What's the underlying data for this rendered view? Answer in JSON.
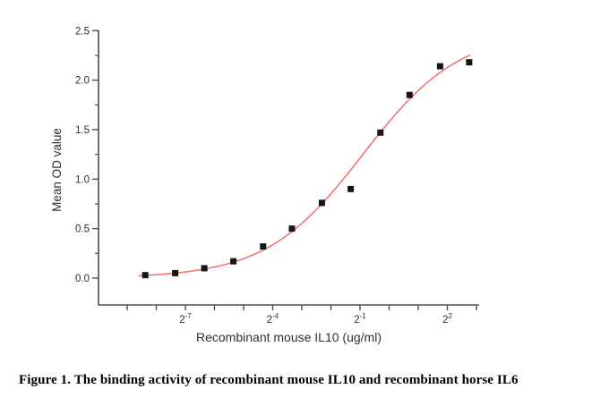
{
  "figure": {
    "caption": "Figure 1. The binding activity of recombinant mouse IL10 and recombinant horse IL6"
  },
  "chart_data": {
    "type": "scatter",
    "title": "",
    "xlabel": "Recombinant mouse IL10 (ug/ml)",
    "ylabel": "Mean OD value",
    "x_scale": "log2",
    "grid": "off",
    "legend_position": "none",
    "axis_color": "#4d4d4d",
    "text_color": "#2f2f2f",
    "x_axis": {
      "tick_exponents": [
        -9,
        -8,
        -7,
        -6,
        -5,
        -4,
        -3,
        -2,
        -1,
        0,
        1,
        2,
        3
      ],
      "labeled_exponents": [
        -7,
        -4,
        -1,
        2
      ],
      "labeled_ticks": [
        {
          "base": "2",
          "exp": "-7"
        },
        {
          "base": "2",
          "exp": "-4"
        },
        {
          "base": "2",
          "exp": "-1"
        },
        {
          "base": "2",
          "exp": "2"
        }
      ],
      "range_log2": [
        -9.05,
        3.1
      ]
    },
    "y_axis": {
      "major_tick_labels": [
        "0.0",
        "0.5",
        "1.0",
        "1.5",
        "2.0",
        "2.5"
      ],
      "major_values": [
        0.0,
        0.5,
        1.0,
        1.5,
        2.0,
        2.5
      ],
      "minor_values": [
        0.25,
        0.75,
        1.25,
        1.75,
        2.25
      ],
      "range": [
        -0.27,
        2.5
      ]
    },
    "series": [
      {
        "name": "Mean OD value",
        "marker": "square",
        "marker_color": "#161616",
        "points": [
          {
            "log2x": -8.38,
            "od": 0.03
          },
          {
            "log2x": -7.35,
            "od": 0.05
          },
          {
            "log2x": -6.35,
            "od": 0.1
          },
          {
            "log2x": -5.35,
            "od": 0.17
          },
          {
            "log2x": -4.33,
            "od": 0.32
          },
          {
            "log2x": -3.34,
            "od": 0.5
          },
          {
            "log2x": -2.31,
            "od": 0.76
          },
          {
            "log2x": -1.32,
            "od": 0.9
          },
          {
            "log2x": -0.3,
            "od": 1.47
          },
          {
            "log2x": 0.7,
            "od": 1.85
          },
          {
            "log2x": 1.75,
            "od": 2.14
          },
          {
            "log2x": 2.75,
            "od": 2.18
          }
        ]
      }
    ],
    "fit_curve": {
      "model": "logistic",
      "bottom": 0.0,
      "top": 2.5,
      "slope_k": 0.6,
      "mid_log2x": -0.9,
      "x_start_log2": -8.6,
      "x_end_log2": 2.78,
      "color": "#f47474"
    }
  }
}
